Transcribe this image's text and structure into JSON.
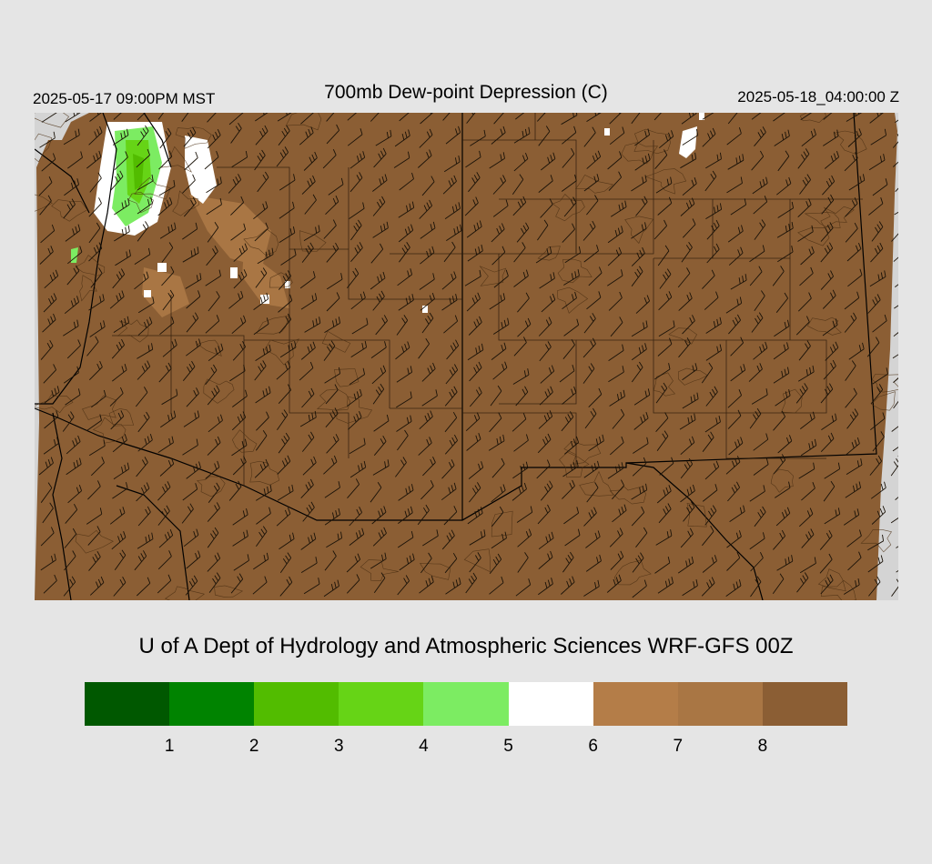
{
  "header": {
    "local_time": "2025-05-17 09:00PM MST",
    "title": "700mb Dew-point Depression (C)",
    "valid_time": "2025-05-18_04:00:00 Z"
  },
  "credit": "U of A Dept of Hydrology and Atmospheric Sciences WRF-GFS 00Z",
  "colors": {
    "dry_brown": "#8b5e34",
    "medium_brown": "#a97644",
    "light_brown": "#b47d48",
    "white": "#ffffff",
    "light_green": "#7cec62",
    "green": "#66d416",
    "mid_green": "#52bc00",
    "dark_green": "#008300",
    "darkest_green": "#005800",
    "off_domain": "#d4d4d4",
    "background": "#e5e5e5"
  },
  "colorbar": {
    "colors": [
      "#005800",
      "#008300",
      "#52bc00",
      "#66d416",
      "#7cec62",
      "#ffffff",
      "#b47d48",
      "#a97644",
      "#8b5e34"
    ],
    "labels": [
      "1",
      "2",
      "3",
      "4",
      "5",
      "6",
      "7",
      "8"
    ]
  },
  "map": {
    "field": "700mb dew-point depression",
    "dominant_category": "dry (>8 C)",
    "moist_area": "northwest corner",
    "wind_barbs": "southwesterly",
    "overlays": [
      "state borders",
      "county borders",
      "international border",
      "terrain contours"
    ]
  }
}
